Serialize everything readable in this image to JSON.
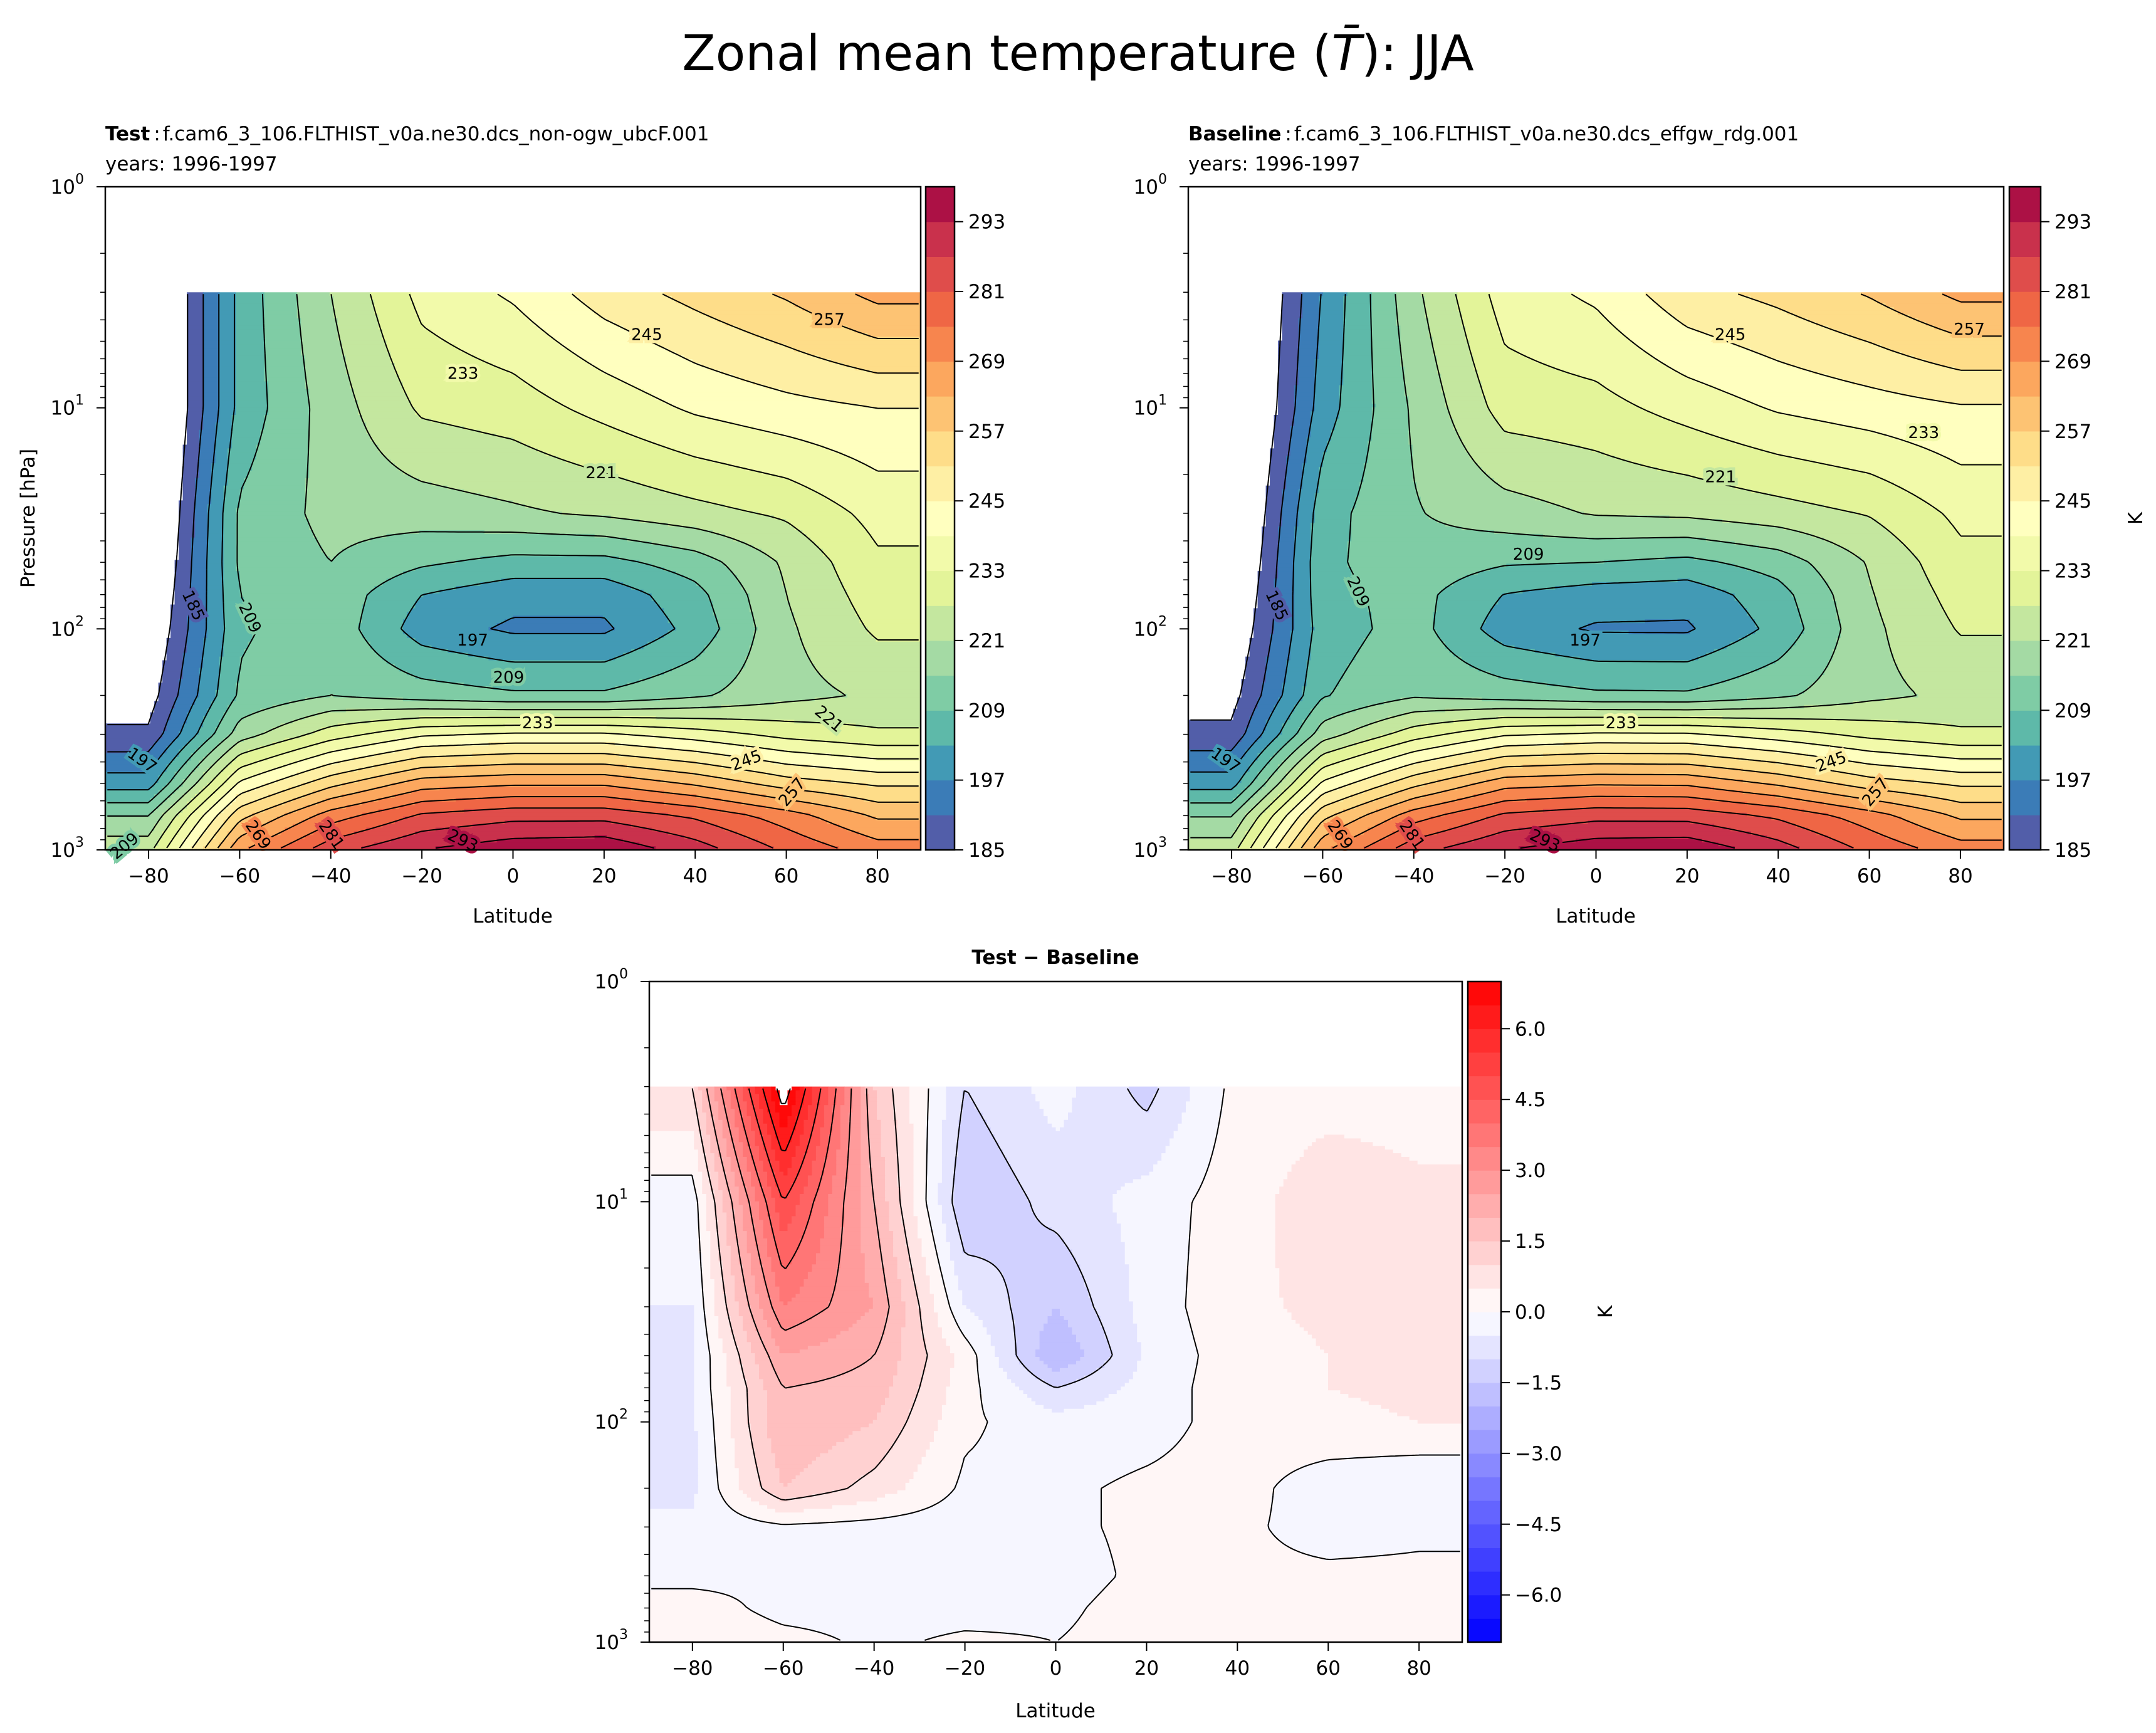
{
  "figure": {
    "title_prefix": "Zonal mean temperature (",
    "title_symbol": "T̄",
    "title_suffix": "): JJA"
  },
  "chart_data": [
    {
      "type": "heatmap",
      "plot_style": "filled contour with labeled contour lines",
      "title_bold": "Test",
      "title_separator": ":",
      "title_case": "f.cam6_3_106.FLTHIST_v0a.ne30.dcs_non-ogw_ubcF.001",
      "subtitle": "years: 1996-1997",
      "xlabel": "Latitude",
      "ylabel": "Pressure [hPa]",
      "xlim": [
        -89.5,
        89.5
      ],
      "ylim": [
        1000,
        1
      ],
      "yscale": "log",
      "xticks": [
        "−80",
        "−60",
        "−40",
        "−20",
        "0",
        "20",
        "40",
        "60",
        "80"
      ],
      "xtick_values": [
        -80,
        -60,
        -40,
        -20,
        0,
        20,
        40,
        60,
        80
      ],
      "yticks": [
        {
          "base": "10",
          "exp": "0"
        },
        {
          "base": "10",
          "exp": "1"
        },
        {
          "base": "10",
          "exp": "2"
        },
        {
          "base": "10",
          "exp": "3"
        }
      ],
      "ytick_values": [
        1,
        10,
        100,
        1000
      ],
      "colorbar": {
        "cmap": "Spectral_r",
        "range": [
          185,
          299
        ],
        "step": 6,
        "ticks": [
          "185",
          "197",
          "209",
          "221",
          "233",
          "245",
          "257",
          "269",
          "281",
          "293"
        ],
        "label": ""
      },
      "contour_labels": [
        "245",
        "233",
        "257",
        "221",
        "209",
        "185",
        "197",
        "209",
        "233",
        "221",
        "245",
        "257",
        "197",
        "269",
        "281",
        "293",
        "209"
      ],
      "lat": [
        -80,
        -60,
        -40,
        -20,
        0,
        20,
        40,
        60,
        80
      ],
      "pressure": [
        3,
        10,
        30,
        50,
        70,
        100,
        200,
        300,
        500,
        700,
        1000
      ],
      "values": [
        [
          170,
          205,
          221,
          235,
          240,
          248,
          253,
          258,
          265
        ],
        [
          170,
          205,
          218,
          228,
          230,
          235,
          240,
          243,
          245
        ],
        [
          172,
          210,
          217,
          218,
          220,
          222,
          225,
          228,
          235
        ],
        [
          174,
          210,
          215,
          210,
          207,
          207,
          212,
          222,
          232
        ],
        [
          176,
          209,
          213,
          203,
          199,
          199,
          207,
          221,
          230
        ],
        [
          178,
          208,
          213,
          200,
          196,
          196,
          205,
          220,
          228
        ],
        [
          182,
          210,
          215,
          212,
          210,
          210,
          214,
          219,
          222
        ],
        [
          186,
          218,
          230,
          238,
          240,
          240,
          236,
          231,
          228
        ],
        [
          200,
          240,
          255,
          266,
          268,
          268,
          262,
          254,
          250
        ],
        [
          215,
          255,
          272,
          282,
          285,
          285,
          280,
          272,
          262
        ],
        [
          225,
          268,
          285,
          293,
          297,
          298,
          290,
          280,
          272
        ]
      ]
    },
    {
      "type": "heatmap",
      "plot_style": "filled contour with labeled contour lines",
      "title_bold": "Baseline",
      "title_separator": ":",
      "title_case": "f.cam6_3_106.FLTHIST_v0a.ne30.dcs_effgw_rdg.001",
      "subtitle": "years: 1996-1997",
      "xlabel": "Latitude",
      "xlim": [
        -89.5,
        89.5
      ],
      "ylim": [
        1000,
        1
      ],
      "yscale": "log",
      "xticks": [
        "−80",
        "−60",
        "−40",
        "−20",
        "0",
        "20",
        "40",
        "60",
        "80"
      ],
      "xtick_values": [
        -80,
        -60,
        -40,
        -20,
        0,
        20,
        40,
        60,
        80
      ],
      "yticks": [
        {
          "base": "10",
          "exp": "0"
        },
        {
          "base": "10",
          "exp": "1"
        },
        {
          "base": "10",
          "exp": "2"
        },
        {
          "base": "10",
          "exp": "3"
        }
      ],
      "ytick_values": [
        1,
        10,
        100,
        1000
      ],
      "colorbar": {
        "cmap": "Spectral_r",
        "range": [
          185,
          299
        ],
        "step": 6,
        "ticks": [
          "185",
          "197",
          "209",
          "221",
          "233",
          "245",
          "257",
          "269",
          "281",
          "293"
        ],
        "label": "K"
      },
      "contour_labels": [
        "245",
        "257",
        "233",
        "221",
        "209",
        "185",
        "209",
        "197",
        "233",
        "245",
        "257",
        "197",
        "269",
        "281",
        "293"
      ],
      "lat": [
        -80,
        -60,
        -40,
        -20,
        0,
        20,
        40,
        60,
        80
      ],
      "pressure": [
        3,
        10,
        30,
        50,
        70,
        100,
        200,
        300,
        500,
        700,
        1000
      ],
      "values": [
        [
          169,
          197.5,
          219.5,
          236,
          240.3,
          249.2,
          252.8,
          257.7,
          264.7
        ],
        [
          170.3,
          200,
          216,
          229.5,
          230.8,
          235.3,
          239.7,
          242.2,
          244.4
        ],
        [
          172.5,
          206.5,
          214.5,
          218.5,
          221.5,
          222.3,
          224.6,
          227.4,
          234.4
        ],
        [
          174.6,
          207.5,
          213,
          209.7,
          209,
          207.4,
          211.7,
          221.5,
          231.4
        ],
        [
          176.5,
          207,
          211.2,
          202.8,
          200,
          199.3,
          206.7,
          220.5,
          229.4
        ],
        [
          178.6,
          206,
          211.5,
          199.9,
          196.3,
          196.2,
          204.8,
          219.6,
          227.5
        ],
        [
          182.6,
          208.5,
          214.2,
          212.1,
          210.1,
          209.9,
          213.8,
          219.3,
          222.5
        ],
        [
          186.4,
          218.1,
          230.2,
          238.3,
          240.1,
          239.9,
          235.9,
          231.2,
          228.1
        ],
        [
          200.2,
          240.1,
          255.1,
          266.5,
          268.2,
          267.9,
          261.9,
          253.9,
          249.9
        ],
        [
          214.7,
          255.2,
          272.2,
          282.2,
          285.1,
          284.8,
          279.9,
          271.8,
          261.9
        ],
        [
          224.5,
          267.8,
          285.1,
          292.9,
          297,
          297.8,
          289.8,
          279.7,
          271.8
        ]
      ]
    },
    {
      "type": "heatmap",
      "plot_style": "filled contour, solid positive/zero lines, dashed negative lines",
      "title_bold": "Test − Baseline",
      "xlabel": "Latitude",
      "xlim": [
        -89.5,
        89.5
      ],
      "ylim": [
        1000,
        1
      ],
      "yscale": "log",
      "xticks": [
        "−80",
        "−60",
        "−40",
        "−20",
        "0",
        "20",
        "40",
        "60",
        "80"
      ],
      "xtick_values": [
        -80,
        -60,
        -40,
        -20,
        0,
        20,
        40,
        60,
        80
      ],
      "yticks": [
        {
          "base": "10",
          "exp": "0"
        },
        {
          "base": "10",
          "exp": "1"
        },
        {
          "base": "10",
          "exp": "2"
        },
        {
          "base": "10",
          "exp": "3"
        }
      ],
      "ytick_values": [
        1,
        10,
        100,
        1000
      ],
      "colorbar": {
        "cmap": "bwr",
        "range": [
          -7,
          7
        ],
        "step": 0.5,
        "ticks": [
          "−6.0",
          "−4.5",
          "−3.0",
          "−1.5",
          "0.0",
          "1.5",
          "3.0",
          "4.5",
          "6.0"
        ],
        "tick_values": [
          -6,
          -4.5,
          -3,
          -1.5,
          0,
          1.5,
          3,
          4.5,
          6
        ],
        "label": "K"
      },
      "lat": [
        -80,
        -60,
        -40,
        -20,
        0,
        20,
        40,
        60,
        80
      ],
      "pressure": [
        3,
        10,
        30,
        50,
        70,
        100,
        200,
        300,
        500,
        700,
        1000
      ],
      "values": [
        [
          1.0,
          7.5,
          1.5,
          -1.0,
          -0.3,
          -1.2,
          0.2,
          0.3,
          0.3
        ],
        [
          -0.3,
          5.0,
          2.0,
          -1.5,
          -0.8,
          -0.3,
          0.3,
          0.8,
          0.6
        ],
        [
          -0.5,
          3.5,
          2.5,
          -0.5,
          -1.5,
          -0.3,
          0.4,
          0.6,
          0.6
        ],
        [
          -0.6,
          2.5,
          2.0,
          0.3,
          -2.0,
          -0.4,
          0.3,
          0.5,
          0.6
        ],
        [
          -0.5,
          2.0,
          1.8,
          0.2,
          -1.0,
          -0.3,
          0.3,
          0.5,
          0.6
        ],
        [
          -0.6,
          2.0,
          1.5,
          0.1,
          -0.3,
          -0.2,
          0.2,
          0.4,
          0.5
        ],
        [
          -0.6,
          1.5,
          0.8,
          -0.1,
          -0.1,
          0.1,
          0.2,
          -0.3,
          -0.5
        ],
        [
          -0.4,
          -0.1,
          -0.2,
          -0.3,
          -0.1,
          0.1,
          0.1,
          -0.2,
          -0.1
        ],
        [
          -0.2,
          -0.1,
          -0.1,
          -0.5,
          -0.2,
          0.1,
          0.1,
          0.1,
          0.1
        ],
        [
          0.3,
          -0.2,
          -0.2,
          -0.2,
          -0.1,
          0.2,
          0.1,
          0.2,
          0.1
        ],
        [
          0.5,
          0.2,
          -0.1,
          0.1,
          0.0,
          0.2,
          0.2,
          0.3,
          0.2
        ]
      ]
    }
  ]
}
